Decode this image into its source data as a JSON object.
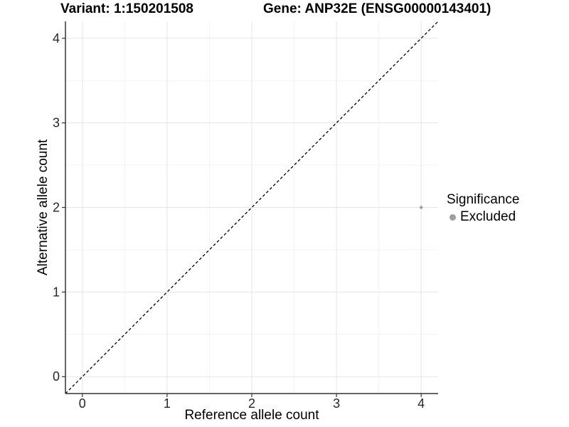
{
  "chart_data": {
    "type": "scatter",
    "title_left": "Variant: 1:150201508",
    "title_right": "Gene: ANP32E (ENSG00000143401)",
    "xlabel": "Reference allele count",
    "ylabel": "Alternative allele count",
    "xlim": [
      -0.2,
      4.2
    ],
    "ylim": [
      -0.2,
      4.2
    ],
    "x_ticks": [
      0,
      1,
      2,
      3,
      4
    ],
    "y_ticks": [
      0,
      1,
      2,
      3,
      4
    ],
    "x_minor_ticks": [
      0.5,
      1.5,
      2.5,
      3.5
    ],
    "y_minor_ticks": [
      0.5,
      1.5,
      2.5,
      3.5
    ],
    "grid": "major+minor",
    "reference_line": {
      "type": "identity y=x",
      "style": "dashed",
      "color": "#000000"
    },
    "series": [
      {
        "name": "Excluded",
        "color": "#9e9e9e",
        "point_radius": 2.2,
        "points": [
          [
            4,
            2
          ]
        ]
      }
    ],
    "legend": {
      "title": "Significance",
      "position": "right",
      "items": [
        {
          "label": "Excluded",
          "color": "#9e9e9e",
          "marker": "circle"
        }
      ]
    },
    "colors": {
      "grid_major": "#e5e5e5",
      "grid_minor": "#f3f3f3",
      "axis_line": "#333333",
      "tick_label": "#262626"
    }
  }
}
